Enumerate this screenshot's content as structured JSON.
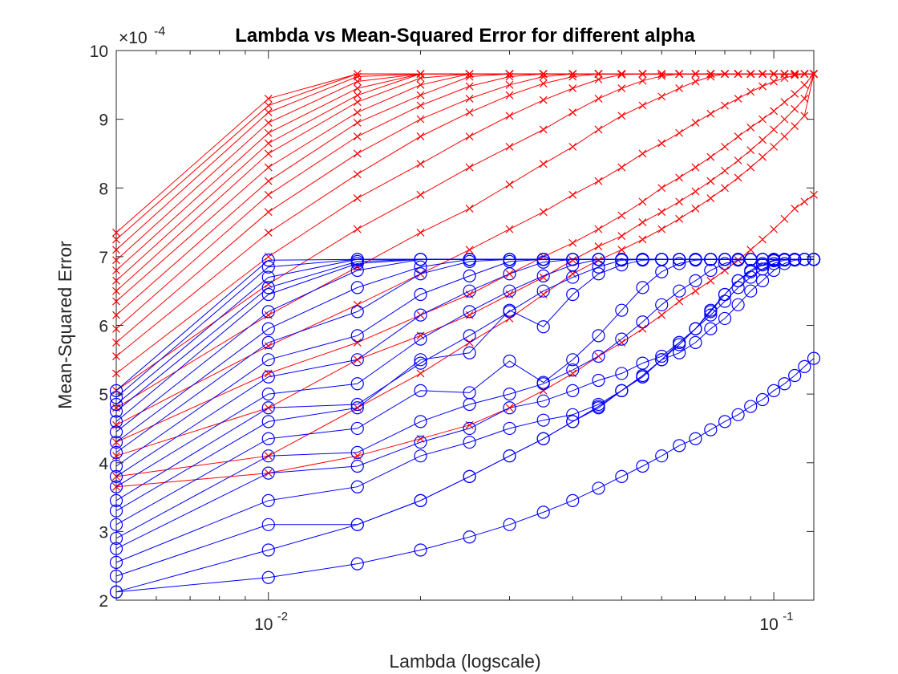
{
  "chart_data": {
    "type": "line",
    "title": "Lambda vs Mean-Squared Error for different alpha",
    "xlabel": "Lambda (logscale)",
    "ylabel": "Mean-Squared Error",
    "x_scale": "log",
    "xlim": [
      0.005,
      0.12
    ],
    "ylim": [
      2,
      10
    ],
    "y_exponent_label": "×10",
    "y_exponent_power": "-4",
    "x_tick_labels": [
      {
        "value": 0.01,
        "base": "10",
        "power": "-2"
      },
      {
        "value": 0.1,
        "base": "10",
        "power": "-1"
      }
    ],
    "y_ticks": [
      "2",
      "3",
      "4",
      "5",
      "6",
      "7",
      "8",
      "9",
      "10"
    ],
    "grid": false,
    "legend": "none",
    "x": [
      0.005,
      0.01,
      0.015,
      0.02,
      0.025,
      0.03,
      0.035,
      0.04,
      0.045,
      0.05,
      0.055,
      0.06,
      0.065,
      0.07,
      0.075,
      0.08,
      0.085,
      0.09,
      0.095,
      0.1,
      0.105,
      0.11,
      0.115,
      0.12
    ],
    "series_styles": {
      "red": {
        "color": "#ff0000",
        "marker": "x"
      },
      "blue": {
        "color": "#0000ff",
        "marker": "o"
      }
    },
    "series": [
      {
        "style": "red",
        "values": [
          7.35,
          9.3,
          9.66,
          9.66,
          9.66,
          9.66,
          9.66,
          9.66,
          9.66,
          9.66,
          9.66,
          9.66,
          9.66,
          9.66,
          9.66,
          9.66,
          9.66,
          9.66,
          9.66,
          9.66,
          9.66,
          9.66,
          9.66,
          9.66
        ]
      },
      {
        "style": "red",
        "values": [
          7.25,
          9.2,
          9.66,
          9.66,
          9.66,
          9.66,
          9.66,
          9.66,
          9.66,
          9.66,
          9.66,
          9.66,
          9.66,
          9.66,
          9.66,
          9.66,
          9.66,
          9.66,
          9.66,
          9.66,
          9.66,
          9.66,
          9.66,
          9.66
        ]
      },
      {
        "style": "red",
        "values": [
          7.1,
          9.1,
          9.62,
          9.66,
          9.66,
          9.66,
          9.66,
          9.66,
          9.66,
          9.66,
          9.66,
          9.66,
          9.66,
          9.66,
          9.66,
          9.66,
          9.66,
          9.66,
          9.66,
          9.66,
          9.66,
          9.66,
          9.66,
          9.66
        ]
      },
      {
        "style": "red",
        "values": [
          6.95,
          8.95,
          9.55,
          9.66,
          9.66,
          9.66,
          9.66,
          9.66,
          9.66,
          9.66,
          9.66,
          9.66,
          9.66,
          9.66,
          9.66,
          9.66,
          9.66,
          9.66,
          9.66,
          9.66,
          9.66,
          9.66,
          9.66,
          9.66
        ]
      },
      {
        "style": "red",
        "values": [
          6.8,
          8.8,
          9.45,
          9.66,
          9.66,
          9.66,
          9.66,
          9.66,
          9.66,
          9.66,
          9.66,
          9.66,
          9.66,
          9.66,
          9.66,
          9.66,
          9.66,
          9.66,
          9.66,
          9.66,
          9.66,
          9.66,
          9.66,
          9.66
        ]
      },
      {
        "style": "red",
        "values": [
          6.65,
          8.65,
          9.35,
          9.66,
          9.66,
          9.66,
          9.66,
          9.66,
          9.66,
          9.66,
          9.66,
          9.66,
          9.66,
          9.66,
          9.66,
          9.66,
          9.66,
          9.66,
          9.66,
          9.66,
          9.66,
          9.66,
          9.66,
          9.66
        ]
      },
      {
        "style": "red",
        "values": [
          6.5,
          8.5,
          9.25,
          9.6,
          9.66,
          9.66,
          9.66,
          9.66,
          9.66,
          9.66,
          9.66,
          9.66,
          9.66,
          9.66,
          9.66,
          9.66,
          9.66,
          9.66,
          9.66,
          9.66,
          9.66,
          9.66,
          9.66,
          9.66
        ]
      },
      {
        "style": "red",
        "values": [
          6.35,
          8.3,
          9.1,
          9.5,
          9.66,
          9.66,
          9.66,
          9.66,
          9.66,
          9.66,
          9.66,
          9.66,
          9.66,
          9.66,
          9.66,
          9.66,
          9.66,
          9.66,
          9.66,
          9.66,
          9.66,
          9.66,
          9.66,
          9.66
        ]
      },
      {
        "style": "red",
        "values": [
          6.15,
          8.1,
          8.95,
          9.35,
          9.62,
          9.66,
          9.66,
          9.66,
          9.66,
          9.66,
          9.66,
          9.66,
          9.66,
          9.66,
          9.66,
          9.66,
          9.66,
          9.66,
          9.66,
          9.66,
          9.66,
          9.66,
          9.66,
          9.66
        ]
      },
      {
        "style": "red",
        "values": [
          5.95,
          7.9,
          8.75,
          9.2,
          9.48,
          9.62,
          9.66,
          9.66,
          9.66,
          9.66,
          9.66,
          9.66,
          9.66,
          9.66,
          9.66,
          9.66,
          9.66,
          9.66,
          9.66,
          9.66,
          9.66,
          9.66,
          9.66,
          9.66
        ]
      },
      {
        "style": "red",
        "values": [
          5.75,
          7.65,
          8.5,
          9.0,
          9.3,
          9.5,
          9.62,
          9.66,
          9.66,
          9.66,
          9.66,
          9.66,
          9.66,
          9.66,
          9.66,
          9.66,
          9.66,
          9.66,
          9.66,
          9.66,
          9.66,
          9.66,
          9.66,
          9.66
        ]
      },
      {
        "style": "red",
        "values": [
          5.55,
          7.35,
          8.2,
          8.75,
          9.1,
          9.35,
          9.52,
          9.62,
          9.66,
          9.66,
          9.66,
          9.66,
          9.66,
          9.66,
          9.66,
          9.66,
          9.66,
          9.66,
          9.66,
          9.66,
          9.66,
          9.66,
          9.66,
          9.66
        ]
      },
      {
        "style": "red",
        "values": [
          5.3,
          7.0,
          7.85,
          8.35,
          8.75,
          9.05,
          9.28,
          9.45,
          9.58,
          9.65,
          9.66,
          9.66,
          9.66,
          9.66,
          9.66,
          9.66,
          9.66,
          9.66,
          9.66,
          9.66,
          9.66,
          9.66,
          9.66,
          9.66
        ]
      },
      {
        "style": "red",
        "values": [
          5.05,
          6.6,
          7.4,
          7.9,
          8.3,
          8.6,
          8.85,
          9.1,
          9.3,
          9.45,
          9.56,
          9.63,
          9.66,
          9.66,
          9.66,
          9.66,
          9.66,
          9.66,
          9.66,
          9.66,
          9.66,
          9.66,
          9.66,
          9.66
        ]
      },
      {
        "style": "red",
        "values": [
          4.8,
          6.15,
          6.85,
          7.35,
          7.7,
          8.05,
          8.35,
          8.6,
          8.85,
          9.05,
          9.2,
          9.33,
          9.45,
          9.55,
          9.62,
          9.66,
          9.66,
          9.66,
          9.66,
          9.66,
          9.66,
          9.66,
          9.66,
          9.66
        ]
      },
      {
        "style": "red",
        "values": [
          4.55,
          5.7,
          6.3,
          6.75,
          7.1,
          7.4,
          7.65,
          7.9,
          8.1,
          8.3,
          8.5,
          8.65,
          8.8,
          8.95,
          9.08,
          9.2,
          9.3,
          9.4,
          9.48,
          9.55,
          9.6,
          9.64,
          9.66,
          9.66
        ]
      },
      {
        "style": "red",
        "values": [
          4.3,
          5.3,
          5.75,
          6.15,
          6.45,
          6.75,
          7.0,
          7.2,
          7.4,
          7.6,
          7.8,
          8.0,
          8.15,
          8.3,
          8.45,
          8.6,
          8.75,
          8.88,
          9.0,
          9.12,
          9.25,
          9.37,
          9.5,
          9.66
        ]
      },
      {
        "style": "red",
        "values": [
          4.1,
          4.8,
          5.5,
          5.85,
          6.15,
          6.45,
          6.7,
          6.95,
          7.15,
          7.3,
          7.5,
          7.65,
          7.8,
          7.95,
          8.1,
          8.25,
          8.4,
          8.55,
          8.7,
          8.85,
          9.0,
          9.15,
          9.3,
          9.66
        ]
      },
      {
        "style": "red",
        "values": [
          3.8,
          4.1,
          4.8,
          5.3,
          5.75,
          6.1,
          6.45,
          6.75,
          6.95,
          7.1,
          7.25,
          7.4,
          7.55,
          7.7,
          7.85,
          8.0,
          8.15,
          8.3,
          8.45,
          8.6,
          8.75,
          8.9,
          9.05,
          9.66
        ]
      },
      {
        "style": "red",
        "values": [
          3.65,
          3.85,
          4.1,
          4.35,
          4.55,
          4.8,
          5.05,
          5.3,
          5.55,
          5.75,
          5.95,
          6.15,
          6.35,
          6.5,
          6.65,
          6.8,
          6.95,
          7.1,
          7.25,
          7.4,
          7.55,
          7.7,
          7.8,
          7.9
        ]
      },
      {
        "style": "blue",
        "values": [
          5.05,
          6.95,
          6.96,
          6.96,
          6.96,
          6.96,
          6.96,
          6.96,
          6.96,
          6.96,
          6.96,
          6.96,
          6.96,
          6.96,
          6.96,
          6.96,
          6.96,
          6.96,
          6.96,
          6.96,
          6.96,
          6.96,
          6.96,
          6.96
        ]
      },
      {
        "style": "blue",
        "values": [
          4.95,
          6.85,
          6.96,
          6.96,
          6.96,
          6.96,
          6.96,
          6.96,
          6.96,
          6.96,
          6.96,
          6.96,
          6.96,
          6.96,
          6.96,
          6.96,
          6.96,
          6.96,
          6.96,
          6.96,
          6.96,
          6.96,
          6.96,
          6.96
        ]
      },
      {
        "style": "blue",
        "values": [
          4.85,
          6.7,
          6.96,
          6.96,
          6.96,
          6.96,
          6.96,
          6.96,
          6.96,
          6.96,
          6.96,
          6.96,
          6.96,
          6.96,
          6.96,
          6.96,
          6.96,
          6.96,
          6.96,
          6.96,
          6.96,
          6.96,
          6.96,
          6.96
        ]
      },
      {
        "style": "blue",
        "values": [
          4.75,
          6.55,
          6.93,
          6.96,
          6.96,
          6.96,
          6.96,
          6.96,
          6.96,
          6.96,
          6.96,
          6.96,
          6.96,
          6.96,
          6.96,
          6.96,
          6.96,
          6.96,
          6.96,
          6.96,
          6.96,
          6.96,
          6.96,
          6.96
        ]
      },
      {
        "style": "blue",
        "values": [
          4.6,
          6.45,
          6.9,
          6.96,
          6.96,
          6.96,
          6.96,
          6.96,
          6.96,
          6.96,
          6.96,
          6.96,
          6.96,
          6.96,
          6.96,
          6.96,
          6.96,
          6.96,
          6.96,
          6.96,
          6.96,
          6.96,
          6.96,
          6.96
        ]
      },
      {
        "style": "blue",
        "values": [
          4.45,
          6.2,
          6.8,
          6.96,
          6.96,
          6.96,
          6.96,
          6.96,
          6.96,
          6.96,
          6.96,
          6.96,
          6.96,
          6.96,
          6.96,
          6.96,
          6.96,
          6.96,
          6.96,
          6.96,
          6.96,
          6.96,
          6.96,
          6.96
        ]
      },
      {
        "style": "blue",
        "values": [
          4.3,
          5.95,
          6.55,
          6.85,
          6.96,
          6.96,
          6.96,
          6.96,
          6.96,
          6.96,
          6.96,
          6.96,
          6.96,
          6.96,
          6.96,
          6.96,
          6.96,
          6.96,
          6.96,
          6.96,
          6.96,
          6.96,
          6.96,
          6.96
        ]
      },
      {
        "style": "blue",
        "values": [
          4.15,
          5.75,
          6.2,
          6.75,
          6.93,
          6.96,
          6.96,
          6.96,
          6.96,
          6.96,
          6.96,
          6.96,
          6.96,
          6.96,
          6.96,
          6.96,
          6.96,
          6.96,
          6.96,
          6.96,
          6.96,
          6.96,
          6.96,
          6.96
        ]
      },
      {
        "style": "blue",
        "values": [
          3.95,
          5.5,
          5.85,
          6.45,
          6.72,
          6.93,
          6.96,
          6.96,
          6.96,
          6.96,
          6.96,
          6.96,
          6.96,
          6.96,
          6.96,
          6.96,
          6.96,
          6.96,
          6.96,
          6.96,
          6.96,
          6.96,
          6.96,
          6.96
        ]
      },
      {
        "style": "blue",
        "values": [
          3.8,
          5.25,
          5.5,
          6.15,
          6.5,
          6.75,
          6.92,
          6.96,
          6.96,
          6.96,
          6.96,
          6.96,
          6.96,
          6.96,
          6.96,
          6.96,
          6.96,
          6.96,
          6.96,
          6.96,
          6.96,
          6.96,
          6.96,
          6.96
        ]
      },
      {
        "style": "blue",
        "values": [
          3.65,
          5.0,
          5.15,
          5.8,
          6.2,
          6.5,
          6.72,
          6.88,
          6.96,
          6.96,
          6.96,
          6.96,
          6.96,
          6.96,
          6.96,
          6.96,
          6.96,
          6.96,
          6.96,
          6.96,
          6.96,
          6.96,
          6.96,
          6.96
        ]
      },
      {
        "style": "blue",
        "values": [
          3.45,
          4.8,
          4.85,
          5.45,
          5.85,
          6.2,
          6.5,
          6.7,
          6.85,
          6.95,
          6.96,
          6.96,
          6.96,
          6.96,
          6.96,
          6.96,
          6.96,
          6.96,
          6.96,
          6.96,
          6.96,
          6.96,
          6.96,
          6.96
        ]
      },
      {
        "style": "blue",
        "values": [
          3.3,
          4.6,
          4.8,
          5.5,
          5.6,
          6.22,
          5.98,
          6.45,
          6.75,
          6.88,
          6.95,
          6.96,
          6.96,
          6.96,
          6.96,
          6.96,
          6.96,
          6.96,
          6.96,
          6.96,
          6.96,
          6.96,
          6.96,
          6.96
        ]
      },
      {
        "style": "blue",
        "values": [
          3.1,
          4.35,
          4.5,
          5.05,
          5.02,
          5.48,
          5.17,
          5.5,
          5.85,
          6.22,
          6.55,
          6.78,
          6.9,
          6.95,
          6.96,
          6.96,
          6.96,
          6.96,
          6.96,
          6.96,
          6.96,
          6.96,
          6.96,
          6.96
        ]
      },
      {
        "style": "blue",
        "values": [
          2.9,
          4.1,
          4.15,
          4.6,
          4.85,
          5.0,
          5.15,
          5.35,
          5.55,
          5.8,
          6.05,
          6.3,
          6.5,
          6.65,
          6.8,
          6.9,
          6.95,
          6.96,
          6.96,
          6.96,
          6.96,
          6.96,
          6.96,
          6.96
        ]
      },
      {
        "style": "blue",
        "values": [
          2.75,
          3.85,
          3.95,
          4.3,
          4.5,
          4.8,
          4.9,
          5.05,
          5.2,
          5.3,
          5.45,
          5.55,
          5.75,
          5.95,
          6.15,
          6.35,
          6.55,
          6.7,
          6.82,
          6.9,
          6.95,
          6.96,
          6.96,
          6.96
        ]
      },
      {
        "style": "blue",
        "values": [
          2.55,
          3.45,
          3.65,
          4.1,
          4.3,
          4.5,
          4.62,
          4.7,
          4.85,
          5.05,
          5.25,
          5.5,
          5.6,
          5.75,
          5.95,
          6.1,
          6.3,
          6.5,
          6.65,
          6.8,
          6.9,
          6.95,
          6.96,
          6.96
        ]
      },
      {
        "style": "blue",
        "values": [
          2.35,
          3.1,
          3.1,
          3.45,
          3.8,
          4.1,
          4.35,
          4.6,
          4.8,
          5.05,
          5.25,
          5.5,
          5.75,
          5.95,
          6.2,
          6.45,
          6.65,
          6.8,
          6.9,
          6.95,
          6.96,
          6.96,
          6.96,
          6.96
        ]
      },
      {
        "style": "blue",
        "values": [
          2.12,
          2.73,
          3.1,
          3.45,
          3.8,
          4.1,
          4.35,
          4.6,
          4.82,
          5.05,
          5.27,
          5.5,
          5.72,
          5.95,
          6.22,
          6.45,
          6.65,
          6.78,
          6.88,
          6.94,
          6.96,
          6.96,
          6.96,
          6.96
        ]
      },
      {
        "style": "blue",
        "values": [
          2.12,
          2.33,
          2.53,
          2.73,
          2.92,
          3.1,
          3.28,
          3.45,
          3.63,
          3.8,
          3.95,
          4.1,
          4.25,
          4.35,
          4.48,
          4.6,
          4.7,
          4.82,
          4.92,
          5.05,
          5.15,
          5.27,
          5.4,
          5.52
        ]
      }
    ]
  }
}
